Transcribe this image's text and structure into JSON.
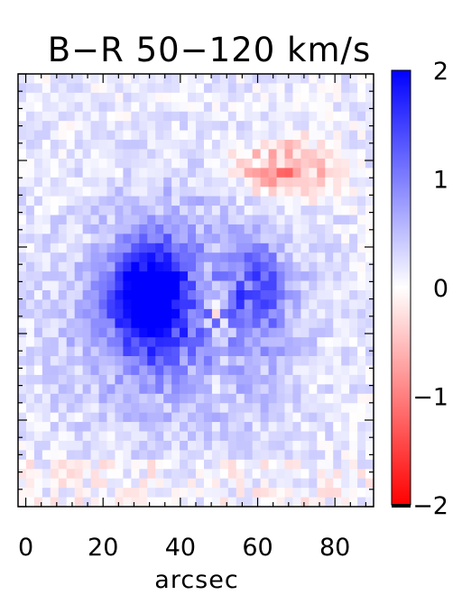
{
  "chart_data": {
    "type": "heatmap",
    "title": "B−R 50−120 km/s",
    "subtitle": "",
    "xlabel": "arcsec",
    "ylabel": "",
    "xlim": [
      -2,
      90
    ],
    "x_ticks": [
      0,
      20,
      40,
      60,
      80
    ],
    "x_tick_labels": [
      "0",
      "20",
      "40",
      "60",
      "80"
    ],
    "grid": false,
    "colorbar": {
      "range": [
        -2,
        2
      ],
      "ticks": [
        2,
        1,
        0,
        -1,
        -2
      ],
      "tick_labels": [
        "2",
        "1",
        "0",
        "−1",
        "−2"
      ],
      "low_color": "#ff0000",
      "mid_color": "#ffffff",
      "high_color": "#0000ff",
      "bottom_cap_color": "#000000"
    },
    "matrix_note": "rows top-to-bottom, columns = x pixels left-to-right",
    "values": [
      "-----+----+----+--------+----+--------",
      "---+++--+--------+----++---+-++--+--+-",
      "-+--++++-+----+-------++-+-+-++-+++---",
      "-++-+-+-++-+---+-+--++-+--+--+--++-+--",
      "---++-+-+-++---+-+----+-+-----+---+---",
      "--+++-+++-+---+----+-+-+--++-++++++---",
      "---+-++-+---++-+---++++--+--+---++-+--",
      "---++-+++-+-+++-+-+-----+++++--++-++--",
      "-++--++--------+--+---++-+++-+++--+---",
      "-++++-+---+++--++--+-------++---+--+--",
      "++-+--+-+-+-++--+--+-+---+-+++++-++-+-",
      "---+++++-+++++-+++-+-+-+-+-++++++--+--",
      "-+--++--+-+-++++++++-++-++-++-++--+---",
      "----++--+-+-+++++++++++-+-++----+---+-",
      "--+++++-++++--++-++--++-+--+---++++++-",
      "-+-+++++++-+++++++++++--+-+++-+---+++-",
      "+-+-+---++-+-++++++++-++-+++++++-++++-",
      "--++-+-+-+++++++++++++++-+-+-----++---",
      "+-+-++-+--+-++++++++-+-++++-+-+-+-++--",
      "-+-+-+++++++-+++++++++++-+++-+++-+++--",
      "+-+-+--+-+++-++++++++--+-+----++-+--+-",
      "+-+-+-++++++-+++++++++++--+-+-+-++-+--",
      "-+++-++-+-+-++++++++--+-+++-++++-+--+-",
      "-+-+++++--+--+++++++-+-++++-+-+++-+++-",
      "--+-+-+-+---++++++++--+--+-++++-+-++--",
      "-++++++++-+-++++++++-+-+++++++++-++-+-",
      "-+--++-+-+--+-+-++-++-+-++++-+++++--+-",
      "++----+-+++-+--+++++-++-+-++-++-+-+-+-",
      "-+-+-++-+-++--+++-+-++-+++++-+-+-+-++-",
      "-+--+-+-+--+-+++-++--++++-++-+--+-++--",
      "--++-+++++-+-++-+-+-+-+-+-+-----+-+-+-",
      "-+--++-+-+-++-++-+-+++++++--+-+--+-+--",
      "--+-+-+---+-+++-+++-+++-+-+-++-++++-+-",
      "-+++-++++++---+-+-++--+++---+-+-++--+-",
      "-+-+--+-+--++-++++-+--+-++--++-+---++-",
      "-++-++--+-+-++-+-+++-+-++---+--++-+---",
      "-+--+-++-+-+-+-++--+-++-+++-++++-+-+--",
      "---+-+-+-+-+-+-+-+--+-+++--+-++--++---",
      "++-++--+-+-+-+-+++-+-++---+-+++-+++-+-",
      "+-+-+-+-++-+-++-+-+-++-+-+-++++-+++++-",
      "-+-+--++++++---+-+-++-+-+-+--+-+-+++--",
      "+-+-+--+-+-+-+-+---+-+--+++-+--+-+-+--",
      "-++-+-+-+-+-+-+-+-+--++-+--+--+-+-+---",
      "-+-+-+--+-+-+--+++-+--+-+-+++-++-+-++-",
      "----+-----+-------+--+-+-+-+--+-+-----",
      "--------------------------------------"
    ],
    "color_note": "heatmap cells are drawn from an encoded grid in the script"
  }
}
